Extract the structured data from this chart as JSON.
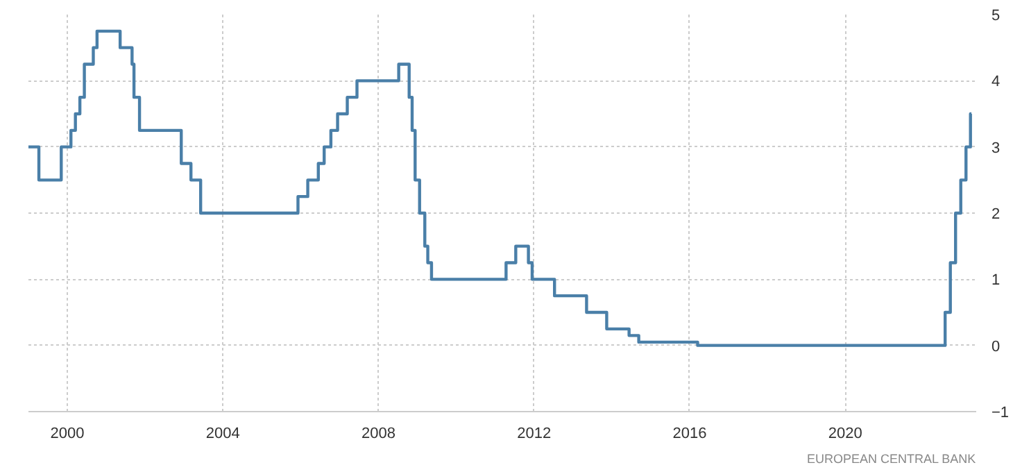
{
  "chart_data": {
    "type": "step",
    "x": [
      "1999-01-01",
      "1999-04-09",
      "1999-11-05",
      "2000-02-04",
      "2000-03-17",
      "2000-04-28",
      "2000-06-09",
      "2000-09-01",
      "2000-10-06",
      "2001-05-11",
      "2001-08-31",
      "2001-09-18",
      "2001-11-09",
      "2002-12-06",
      "2003-03-07",
      "2003-06-06",
      "2005-12-06",
      "2006-03-08",
      "2006-06-15",
      "2006-08-09",
      "2006-10-11",
      "2006-12-13",
      "2007-03-14",
      "2007-06-13",
      "2008-07-09",
      "2008-10-15",
      "2008-11-12",
      "2008-12-10",
      "2009-01-21",
      "2009-03-11",
      "2009-04-08",
      "2009-05-13",
      "2011-04-13",
      "2011-07-13",
      "2011-11-09",
      "2011-12-14",
      "2012-07-11",
      "2013-05-08",
      "2013-11-13",
      "2014-06-11",
      "2014-09-10",
      "2016-03-16",
      "2022-07-27",
      "2022-09-14",
      "2022-11-02",
      "2022-12-21",
      "2023-02-08",
      "2023-03-22",
      "2023-03-31"
    ],
    "series": [
      {
        "color": "#4a7fa8",
        "values": [
          3.0,
          2.5,
          3.0,
          3.25,
          3.5,
          3.75,
          4.25,
          4.5,
          4.75,
          4.5,
          4.25,
          3.75,
          3.25,
          2.75,
          2.5,
          2.0,
          2.25,
          2.5,
          2.75,
          3.0,
          3.25,
          3.5,
          3.75,
          4.0,
          4.25,
          3.75,
          3.25,
          2.5,
          2.0,
          1.5,
          1.25,
          1.0,
          1.25,
          1.5,
          1.25,
          1.0,
          0.75,
          0.5,
          0.25,
          0.15,
          0.05,
          0.0,
          0.5,
          1.25,
          2.0,
          2.5,
          3.0,
          3.5,
          3.5
        ]
      }
    ],
    "xlim": [
      "1999-01-01",
      "2023-05-15"
    ],
    "xticks": [
      {
        "value": "2000-01-01",
        "label": "2000"
      },
      {
        "value": "2004-01-01",
        "label": "2004"
      },
      {
        "value": "2008-01-01",
        "label": "2008"
      },
      {
        "value": "2012-01-01",
        "label": "2012"
      },
      {
        "value": "2016-01-01",
        "label": "2016"
      },
      {
        "value": "2020-01-01",
        "label": "2020"
      }
    ],
    "ylim": [
      -1,
      5
    ],
    "yticks": [
      -1,
      0,
      1,
      2,
      3,
      4,
      5
    ],
    "grid": true,
    "line_style": "solid",
    "marker": "none",
    "annotations": [
      "EUROPEAN CENTRAL BANK"
    ]
  }
}
